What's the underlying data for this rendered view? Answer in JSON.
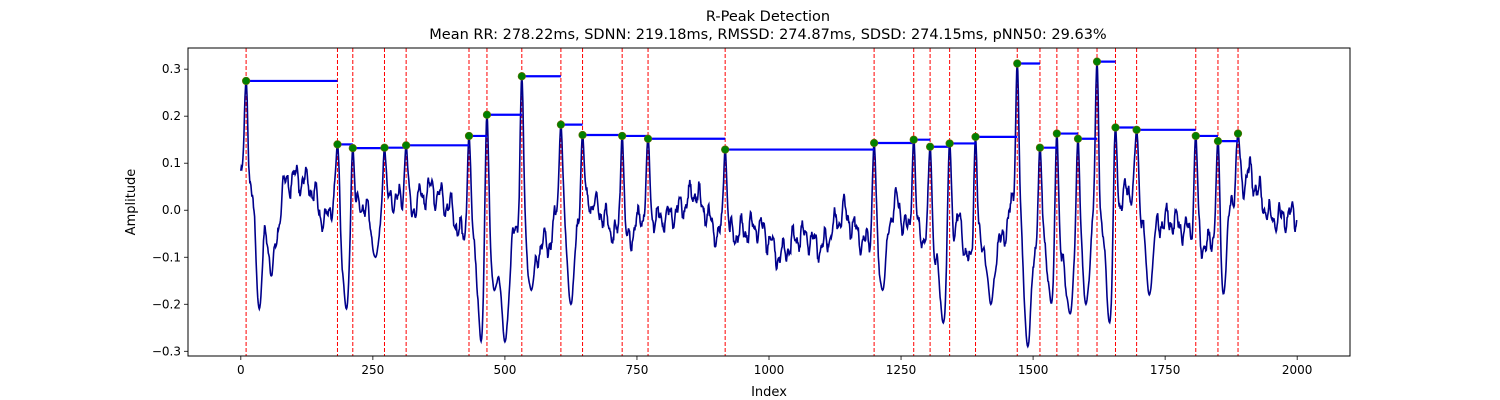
{
  "chart_data": {
    "type": "line",
    "title": "R-Peak Detection",
    "subtitle": "Mean RR: 278.22ms, SDNN: 219.18ms, RMSSD: 274.87ms, SDSD: 274.15ms, pNN50: 29.63%",
    "xlabel": "Index",
    "ylabel": "Amplitude",
    "xlim": [
      -100,
      2100
    ],
    "ylim": [
      -0.31,
      0.345
    ],
    "x_ticks": [
      0,
      250,
      500,
      750,
      1000,
      1250,
      1500,
      1750,
      2000
    ],
    "x_tick_labels": [
      "0",
      "250",
      "500",
      "750",
      "1000",
      "1250",
      "1500",
      "1750",
      "2000"
    ],
    "y_ticks": [
      -0.3,
      -0.2,
      -0.1,
      0.0,
      0.1,
      0.2,
      0.3
    ],
    "y_tick_labels": [
      "−0.3",
      "−0.2",
      "−0.1",
      "0.0",
      "0.1",
      "0.2",
      "0.3"
    ],
    "grid": false,
    "signal_color": "#00008b",
    "peak_line_color": "#ff0000",
    "peak_marker_color": "#008000",
    "rr_segment_color": "#0000ff",
    "signal": {
      "length": 2000,
      "baseline_x": [
        0,
        40,
        60,
        80,
        100,
        130,
        160,
        175,
        195,
        230,
        255,
        290,
        320,
        360,
        400,
        420,
        445,
        455,
        480,
        500,
        520,
        545,
        560,
        585,
        600,
        620,
        640,
        660,
        680,
        700,
        730,
        760,
        790,
        820,
        860,
        900,
        940,
        980,
        1020,
        1060,
        1100,
        1140,
        1180,
        1210,
        1240,
        1265,
        1290,
        1320,
        1360,
        1380,
        1410,
        1440,
        1460,
        1490,
        1525,
        1560,
        1595,
        1640,
        1680,
        1720,
        1760,
        1790,
        1830,
        1870,
        1910,
        1950,
        1995
      ],
      "baseline_y": [
        0.07,
        0.03,
        -0.14,
        0.05,
        0.07,
        0.06,
        -0.03,
        0.02,
        -0.05,
        0.02,
        -0.03,
        0.03,
        0.0,
        0.05,
        0.0,
        -0.06,
        -0.05,
        -0.02,
        -0.05,
        -0.12,
        -0.04,
        -0.05,
        -0.08,
        -0.07,
        0.0,
        -0.03,
        -0.02,
        0.02,
        0.0,
        -0.04,
        -0.07,
        -0.01,
        -0.02,
        -0.01,
        0.04,
        -0.05,
        -0.05,
        -0.03,
        -0.1,
        -0.05,
        -0.08,
        0.0,
        -0.07,
        -0.06,
        0.02,
        -0.05,
        -0.05,
        -0.1,
        -0.02,
        -0.12,
        -0.06,
        -0.07,
        0.01,
        -0.08,
        -0.06,
        -0.12,
        -0.03,
        -0.04,
        0.05,
        -0.03,
        -0.02,
        -0.04,
        -0.08,
        0.02,
        0.08,
        -0.02,
        -0.01
      ],
      "troughs": [
        {
          "x": 35,
          "y": -0.21
        },
        {
          "x": 200,
          "y": -0.21
        },
        {
          "x": 255,
          "y": -0.1
        },
        {
          "x": 455,
          "y": -0.28
        },
        {
          "x": 480,
          "y": -0.17
        },
        {
          "x": 500,
          "y": -0.28
        },
        {
          "x": 550,
          "y": -0.17
        },
        {
          "x": 625,
          "y": -0.2
        },
        {
          "x": 1215,
          "y": -0.17
        },
        {
          "x": 1330,
          "y": -0.24
        },
        {
          "x": 1420,
          "y": -0.2
        },
        {
          "x": 1490,
          "y": -0.29
        },
        {
          "x": 1535,
          "y": -0.2
        },
        {
          "x": 1570,
          "y": -0.22
        },
        {
          "x": 1600,
          "y": -0.2
        },
        {
          "x": 1645,
          "y": -0.24
        },
        {
          "x": 1720,
          "y": -0.18
        },
        {
          "x": 1860,
          "y": -0.18
        }
      ]
    },
    "r_peaks": {
      "x": [
        10,
        183,
        212,
        272,
        313,
        432,
        466,
        532,
        606,
        647,
        722,
        771,
        917,
        1199,
        1274,
        1305,
        1342,
        1391,
        1470,
        1513,
        1545,
        1585,
        1621,
        1656,
        1696,
        1808,
        1850,
        1888
      ],
      "y": [
        0.275,
        0.14,
        0.132,
        0.133,
        0.138,
        0.158,
        0.203,
        0.285,
        0.182,
        0.16,
        0.158,
        0.152,
        0.129,
        0.143,
        0.15,
        0.135,
        0.142,
        0.156,
        0.312,
        0.133,
        0.163,
        0.152,
        0.316,
        0.176,
        0.171,
        0.158,
        0.147,
        0.163
      ]
    }
  }
}
